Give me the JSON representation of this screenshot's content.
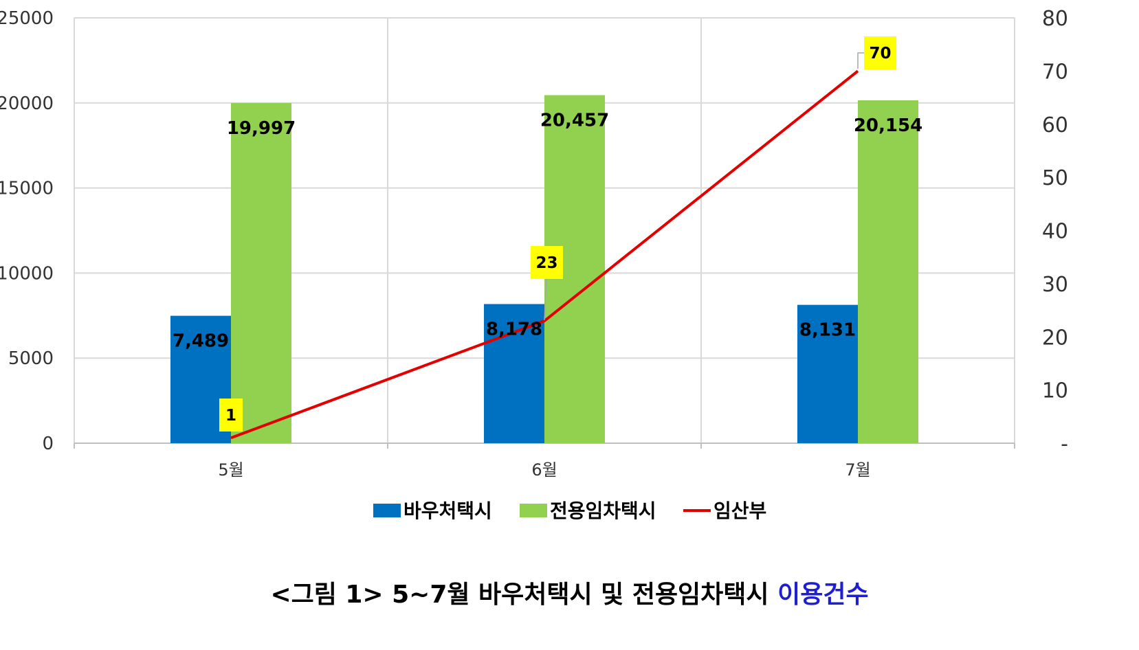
{
  "chart_data": {
    "type": "bar",
    "categories": [
      "5월",
      "6월",
      "7월"
    ],
    "series": [
      {
        "name": "바우처택시",
        "kind": "bar",
        "axis": "left",
        "color": "#0070C0",
        "values": [
          7489,
          8178,
          8131
        ],
        "labels": [
          "7,489",
          "8,178",
          "8,131"
        ]
      },
      {
        "name": "전용임차택시",
        "kind": "bar",
        "axis": "left",
        "color": "#92D050",
        "values": [
          19997,
          20457,
          20154
        ],
        "labels": [
          "19,997",
          "20,457",
          "20,154"
        ]
      },
      {
        "name": "임산부",
        "kind": "line",
        "axis": "right",
        "color": "#E30000",
        "values": [
          1,
          23,
          70
        ],
        "labels": [
          "1",
          "23",
          "70"
        ]
      }
    ],
    "y_left": {
      "min": 0,
      "max": 25000,
      "ticks": [
        "0",
        "5000",
        "10000",
        "15000",
        "20000",
        "25000"
      ]
    },
    "y_right": {
      "min": 0,
      "max": 80,
      "ticks": [
        "-",
        "10",
        "20",
        "30",
        "40",
        "50",
        "60",
        "70",
        "80"
      ]
    },
    "grid": true,
    "legend": "bottom",
    "line_label_bg": "#FFFF00"
  },
  "caption": {
    "main": "<그림 1> 5~7월 바우처택시 및 전용임차택시 ",
    "highlight": "이용건수",
    "highlight_color": "#1f1fd0"
  }
}
